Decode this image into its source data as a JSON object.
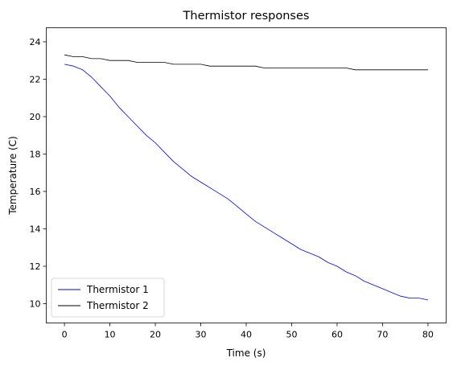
{
  "chart_data": {
    "type": "line",
    "title": "Thermistor responses",
    "xlabel": "Time (s)",
    "ylabel": "Temperature (C)",
    "xlim": [
      -4,
      84
    ],
    "ylim": [
      8.97,
      24.75
    ],
    "xticks": [
      0,
      10,
      20,
      30,
      40,
      50,
      60,
      70,
      80
    ],
    "yticks": [
      10,
      12,
      14,
      16,
      18,
      20,
      22,
      24
    ],
    "grid": false,
    "legend": "lower-left",
    "series": [
      {
        "name": "Thermistor 1",
        "color": "#0000ff",
        "x": [
          0,
          2,
          4,
          6,
          8,
          10,
          12,
          14,
          16,
          18,
          20,
          22,
          24,
          26,
          28,
          30,
          32,
          34,
          36,
          38,
          40,
          42,
          44,
          46,
          48,
          50,
          52,
          54,
          56,
          58,
          60,
          62,
          64,
          66,
          68,
          70,
          72,
          74,
          76,
          78,
          80
        ],
        "values": [
          22.8,
          22.7,
          22.5,
          22.1,
          21.6,
          21.1,
          20.5,
          20.0,
          19.5,
          19.0,
          18.6,
          18.1,
          17.6,
          17.2,
          16.8,
          16.5,
          16.2,
          15.9,
          15.6,
          15.2,
          14.8,
          14.4,
          14.1,
          13.8,
          13.5,
          13.2,
          12.9,
          12.7,
          12.5,
          12.2,
          12.0,
          11.7,
          11.5,
          11.2,
          11.0,
          10.8,
          10.6,
          10.4,
          10.3,
          10.3,
          10.2
        ]
      },
      {
        "name": "Thermistor 2",
        "color": "#000000",
        "x": [
          0,
          2,
          4,
          6,
          8,
          10,
          12,
          14,
          16,
          18,
          20,
          22,
          24,
          26,
          28,
          30,
          32,
          34,
          36,
          38,
          40,
          42,
          44,
          46,
          48,
          50,
          52,
          54,
          56,
          58,
          60,
          62,
          64,
          66,
          68,
          70,
          72,
          74,
          76,
          78,
          80
        ],
        "values": [
          23.3,
          23.2,
          23.2,
          23.1,
          23.1,
          23.0,
          23.0,
          23.0,
          22.9,
          22.9,
          22.9,
          22.9,
          22.8,
          22.8,
          22.8,
          22.8,
          22.7,
          22.7,
          22.7,
          22.7,
          22.7,
          22.7,
          22.6,
          22.6,
          22.6,
          22.6,
          22.6,
          22.6,
          22.6,
          22.6,
          22.6,
          22.6,
          22.5,
          22.5,
          22.5,
          22.5,
          22.5,
          22.5,
          22.5,
          22.5,
          22.5
        ]
      }
    ]
  }
}
